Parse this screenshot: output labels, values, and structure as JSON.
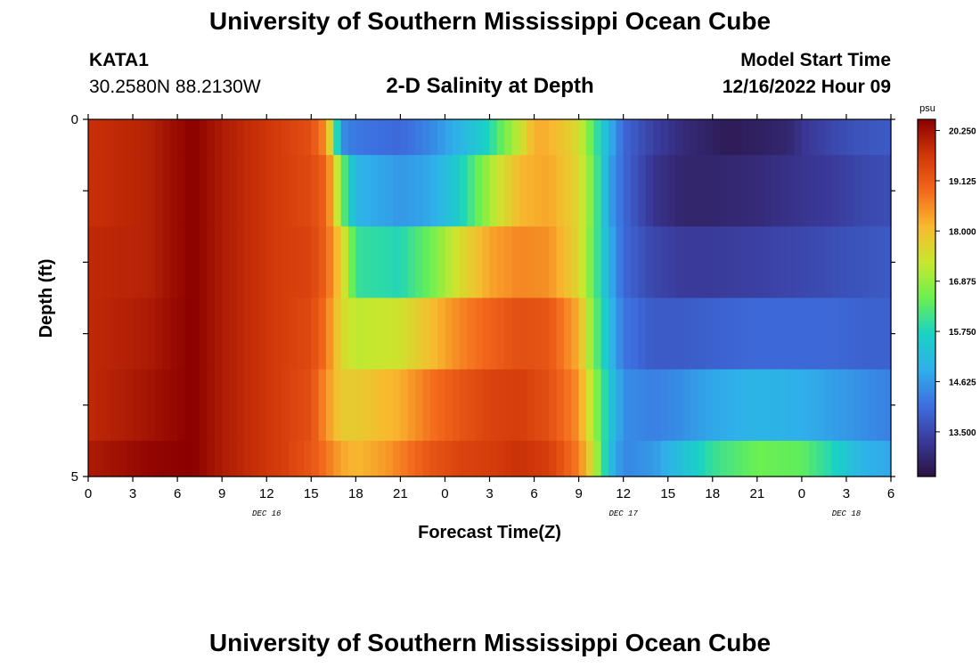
{
  "header": {
    "title": "University of Southern Mississippi Ocean Cube",
    "footer_title": "University of Southern Mississippi Ocean Cube",
    "station_id": "KATA1",
    "coordinates": "30.2580N  88.2130W",
    "plot_title": "2-D Salinity at Depth",
    "model_start_label": "Model Start Time",
    "model_start_value": "12/16/2022 Hour 09"
  },
  "colors": {
    "colormap": [
      "#2b1140",
      "#3a3a9a",
      "#3d6fe0",
      "#2fb0ea",
      "#19d2c4",
      "#6cf050",
      "#c8e72e",
      "#f8b92f",
      "#f3681c",
      "#d13709",
      "#8a0000"
    ]
  },
  "chart_data": {
    "type": "heatmap",
    "title": "2-D Salinity at Depth",
    "xlabel": "Forecast Time(Z)",
    "ylabel": "Depth (ft)",
    "x_ticks": [
      "0",
      "3",
      "6",
      "9",
      "12",
      "15",
      "18",
      "21",
      "0",
      "3",
      "6",
      "9",
      "12",
      "15",
      "18",
      "21",
      "0",
      "3",
      "6"
    ],
    "x_range_hours": [
      0,
      54
    ],
    "date_labels": [
      {
        "text": "DEC 16",
        "hour": 12
      },
      {
        "text": "DEC 17",
        "hour": 36
      },
      {
        "text": "DEC 18",
        "hour": 51
      }
    ],
    "y_tick_labels": [
      "0",
      "5"
    ],
    "y_range": [
      0,
      5
    ],
    "unit": "psu",
    "colorbar_ticks": [
      "20.250",
      "19.125",
      "18.000",
      "16.875",
      "15.750",
      "14.625",
      "13.500"
    ],
    "colorbar_values": [
      20.25,
      19.125,
      18.0,
      16.875,
      15.75,
      14.625,
      13.5
    ],
    "color_range": [
      12.5,
      20.5
    ],
    "depth_rows": [
      "0-0.5",
      "0.5-1.5",
      "1.5-2.5",
      "2.5-3.5",
      "3.5-4.5",
      "4.5-5"
    ],
    "series": [
      {
        "name": "depth-0-0.5",
        "hours": [
          0,
          4,
          7,
          9,
          13,
          15,
          16,
          16.5,
          17,
          18,
          21,
          23,
          25,
          27,
          29,
          30,
          31,
          33,
          35,
          36,
          38,
          40,
          42,
          43,
          45,
          47,
          48,
          50,
          52,
          54
        ],
        "values": [
          19.8,
          20.0,
          20.5,
          20.1,
          19.6,
          19.3,
          18.5,
          17.0,
          14.5,
          14.2,
          14.0,
          14.4,
          15.0,
          15.8,
          17.3,
          18.2,
          18.2,
          17.5,
          15.0,
          14.0,
          13.4,
          13.0,
          12.8,
          12.7,
          12.8,
          12.9,
          13.2,
          13.5,
          13.7,
          13.8
        ]
      },
      {
        "name": "depth-0.5-1.5",
        "hours": [
          0,
          4,
          7,
          9,
          13,
          15,
          16,
          16.5,
          17,
          18,
          21,
          23,
          25,
          27,
          29,
          31,
          33,
          34,
          35,
          36,
          38,
          40,
          42,
          45,
          48,
          50,
          52,
          54
        ],
        "values": [
          19.8,
          20.0,
          20.5,
          20.1,
          19.6,
          19.4,
          19.0,
          18.0,
          16.6,
          15.0,
          14.6,
          14.8,
          15.6,
          17.0,
          18.1,
          18.3,
          17.6,
          16.5,
          14.8,
          14.0,
          13.2,
          12.9,
          12.9,
          13.0,
          13.2,
          13.3,
          13.5,
          13.6
        ]
      },
      {
        "name": "depth-1.5-2.5",
        "hours": [
          0,
          4,
          7,
          9,
          13,
          15,
          16,
          17,
          18,
          21,
          23,
          25,
          27,
          29,
          31,
          33,
          34,
          35,
          36,
          38,
          40,
          42,
          45,
          48,
          50,
          52,
          54
        ],
        "values": [
          19.9,
          20.0,
          20.5,
          20.1,
          19.6,
          19.5,
          19.0,
          17.8,
          16.0,
          15.8,
          16.5,
          17.5,
          18.3,
          18.6,
          18.5,
          17.6,
          16.4,
          15.0,
          14.0,
          13.5,
          13.3,
          13.3,
          13.4,
          13.5,
          13.6,
          13.7,
          13.8
        ]
      },
      {
        "name": "depth-2.5-3.5",
        "hours": [
          0,
          4,
          7,
          9,
          13,
          15,
          16,
          17,
          18,
          21,
          23,
          25,
          27,
          29,
          31,
          33,
          34,
          35,
          36,
          38,
          40,
          42,
          45,
          48,
          50,
          52,
          54
        ],
        "values": [
          19.9,
          20.1,
          20.5,
          20.1,
          19.6,
          19.4,
          18.8,
          17.6,
          17.2,
          17.4,
          18.0,
          18.6,
          19.0,
          19.3,
          19.2,
          18.2,
          16.6,
          15.2,
          14.2,
          13.8,
          13.8,
          13.9,
          14.0,
          14.0,
          14.0,
          13.9,
          13.9
        ]
      },
      {
        "name": "depth-3.5-4.5",
        "hours": [
          0,
          4,
          7,
          9,
          13,
          15,
          16,
          17,
          18,
          21,
          23,
          25,
          27,
          29,
          31,
          33,
          34,
          35,
          36,
          38,
          40,
          42,
          45,
          48,
          50,
          52,
          54
        ],
        "values": [
          19.9,
          20.2,
          20.5,
          20.1,
          19.6,
          19.3,
          18.5,
          17.8,
          17.8,
          18.2,
          18.8,
          19.2,
          19.5,
          19.6,
          19.3,
          18.5,
          17.0,
          15.5,
          14.5,
          14.3,
          14.5,
          14.8,
          15.0,
          14.9,
          14.7,
          14.5,
          14.3
        ]
      },
      {
        "name": "depth-4.5-5",
        "hours": [
          0,
          4,
          7,
          9,
          13,
          15,
          16,
          17,
          18,
          20,
          23,
          25,
          27,
          29,
          31,
          33,
          34,
          35,
          36,
          38,
          40,
          42,
          45,
          48,
          50,
          52,
          54
        ],
        "values": [
          20.1,
          20.4,
          20.5,
          20.1,
          19.6,
          19.2,
          18.8,
          18.3,
          18.1,
          18.4,
          19.2,
          19.5,
          19.6,
          19.8,
          19.6,
          18.7,
          17.4,
          15.3,
          14.4,
          14.6,
          15.3,
          16.0,
          16.5,
          16.4,
          15.8,
          15.0,
          14.8
        ]
      }
    ]
  }
}
